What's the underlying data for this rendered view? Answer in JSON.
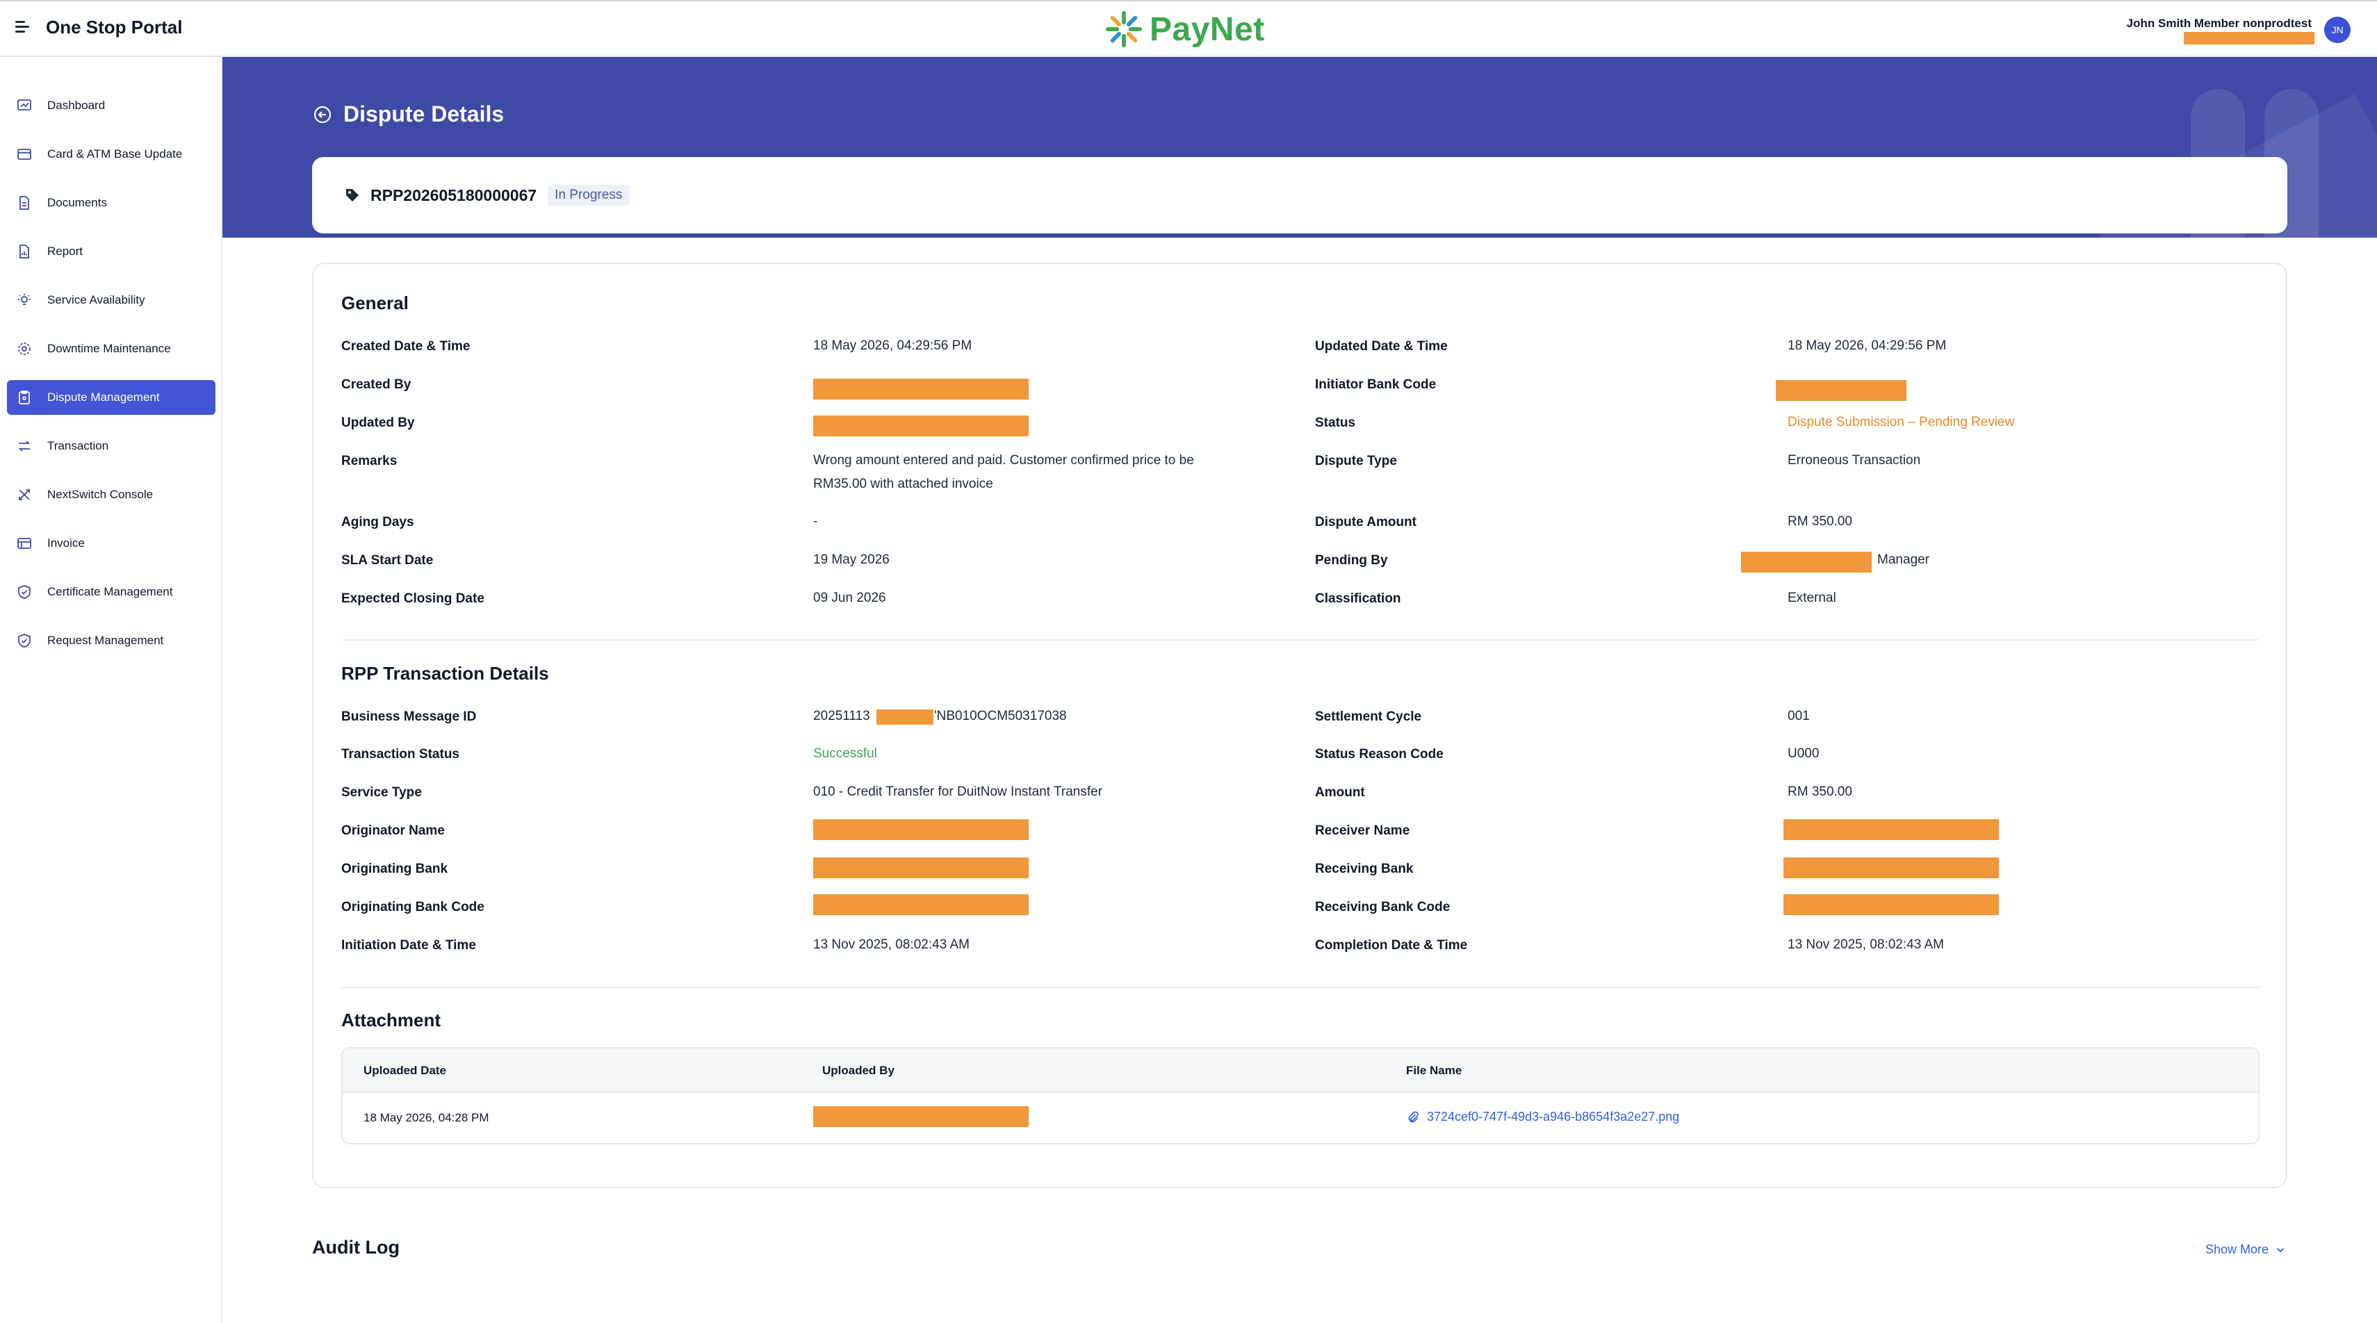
{
  "app": {
    "title": "One Stop Portal",
    "brand": "PayNet"
  },
  "user": {
    "name": "John Smith Member nonprodtest",
    "initials": "JN"
  },
  "sidebar": {
    "items": [
      {
        "label": "Dashboard",
        "icon": "dashboard-icon",
        "active": false
      },
      {
        "label": "Card & ATM Base Update",
        "icon": "card-icon",
        "active": false
      },
      {
        "label": "Documents",
        "icon": "document-icon",
        "active": false
      },
      {
        "label": "Report",
        "icon": "report-icon",
        "active": false
      },
      {
        "label": "Service Availability",
        "icon": "bulb-icon",
        "active": false
      },
      {
        "label": "Downtime Maintenance",
        "icon": "gear-icon",
        "active": false
      },
      {
        "label": "Dispute Management",
        "icon": "clipboard-icon",
        "active": true
      },
      {
        "label": "Transaction",
        "icon": "swap-icon",
        "active": false
      },
      {
        "label": "NextSwitch Console",
        "icon": "x-arrows-icon",
        "active": false
      },
      {
        "label": "Invoice",
        "icon": "invoice-icon",
        "active": false
      },
      {
        "label": "Certificate Management",
        "icon": "shield-check-icon",
        "active": false
      },
      {
        "label": "Request Management",
        "icon": "shield-check-icon",
        "active": false
      }
    ]
  },
  "page": {
    "title": "Dispute Details",
    "reference": "RPP202605180000067",
    "status_badge": "In Progress"
  },
  "general": {
    "title": "General",
    "created_datetime_label": "Created Date & Time",
    "created_datetime": "18 May 2026, 04:29:56 PM",
    "updated_datetime_label": "Updated Date & Time",
    "updated_datetime": "18 May 2026, 04:29:56 PM",
    "created_by_label": "Created By",
    "initiator_bank_code_label": "Initiator Bank Code",
    "updated_by_label": "Updated By",
    "status_label": "Status",
    "status": "Dispute Submission – Pending Review",
    "remarks_label": "Remarks",
    "remarks_line1": "Wrong amount entered and paid. Customer confirmed price to be",
    "remarks_line2": "RM35.00 with attached invoice",
    "dispute_type_label": "Dispute Type",
    "dispute_type": "Erroneous Transaction",
    "aging_days_label": "Aging Days",
    "aging_days": "-",
    "dispute_amount_label": "Dispute Amount",
    "dispute_amount": "RM 350.00",
    "sla_start_label": "SLA Start Date",
    "sla_start": "19 May 2026",
    "pending_by_label": "Pending By",
    "pending_by_suffix": "Manager",
    "expected_closing_label": "Expected Closing Date",
    "expected_closing": "09 Jun 2026",
    "classification_label": "Classification",
    "classification": "External"
  },
  "rpp": {
    "title": "RPP Transaction Details",
    "business_msg_id_label": "Business Message ID",
    "business_msg_id_prefix": "20251113",
    "business_msg_id_suffix": "'NB010OCM50317038",
    "settlement_cycle_label": "Settlement Cycle",
    "settlement_cycle": "001",
    "transaction_status_label": "Transaction Status",
    "transaction_status": "Successful",
    "status_reason_code_label": "Status Reason Code",
    "status_reason_code": "U000",
    "service_type_label": "Service Type",
    "service_type": "010 - Credit Transfer for DuitNow Instant Transfer",
    "amount_label": "Amount",
    "amount": "RM 350.00",
    "originator_name_label": "Originator Name",
    "receiver_name_label": "Receiver Name",
    "originating_bank_label": "Originating Bank",
    "receiving_bank_label": "Receiving Bank",
    "originating_bank_code_label": "Originating Bank Code",
    "receiving_bank_code_label": "Receiving Bank Code",
    "initiation_datetime_label": "Initiation Date & Time",
    "initiation_datetime": "13 Nov 2025, 08:02:43 AM",
    "completion_datetime_label": "Completion Date & Time",
    "completion_datetime": "13 Nov 2025, 08:02:43 AM"
  },
  "attachment": {
    "title": "Attachment",
    "columns": [
      "Uploaded Date",
      "Uploaded By",
      "File Name"
    ],
    "rows": [
      {
        "uploaded_date": "18 May 2026, 04:28 PM",
        "file_name": "3724cef0-747f-49d3-a946-b8654f3a2e27.png"
      }
    ]
  },
  "audit": {
    "title": "Audit Log",
    "show_more": "Show More"
  },
  "colors": {
    "accent": "#4355d4",
    "band": "#3e4aa5",
    "redaction": "#f0983a",
    "brand_green": "#3aa94e",
    "status_orange": "#e8892c",
    "link": "#2f5fe0"
  }
}
